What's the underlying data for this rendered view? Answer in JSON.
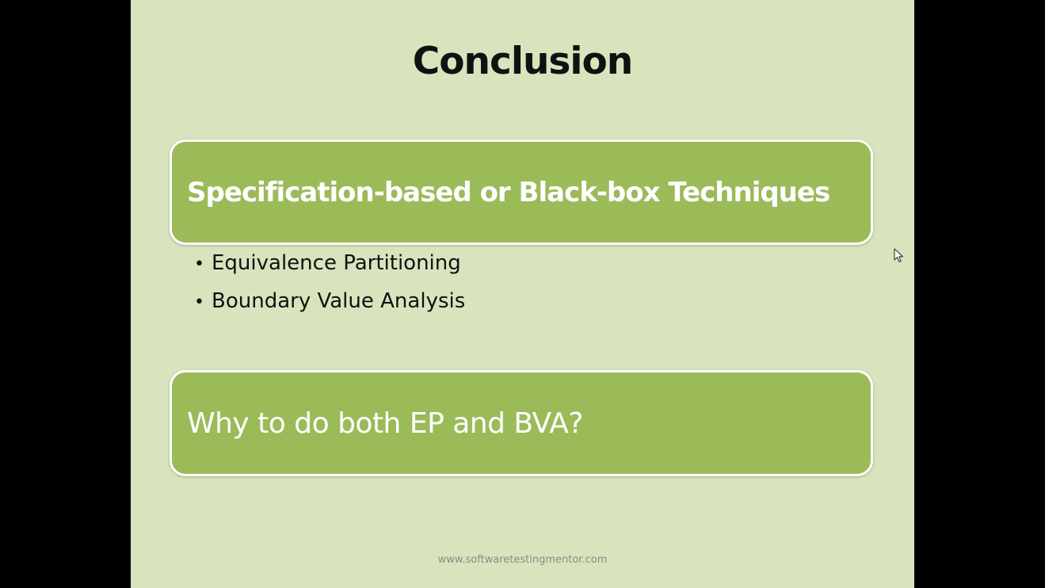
{
  "slide": {
    "title": "Conclusion",
    "box1": {
      "text": "Specification-based or Black-box Techniques"
    },
    "bullets": [
      {
        "text": "Equivalence Partitioning"
      },
      {
        "text": "Boundary Value Analysis"
      }
    ],
    "box2": {
      "text": "Why to do both EP and BVA?"
    },
    "footer": "www.softwaretestingmentor.com",
    "colors": {
      "background": "#d8e4bd",
      "box_fill": "#9bbb59",
      "box_border": "#ffffff",
      "frame": "#000000"
    }
  },
  "icons": {
    "cursor": "mouse-pointer-icon",
    "bullet": "bullet-dot"
  },
  "bullet_glyph": "•"
}
